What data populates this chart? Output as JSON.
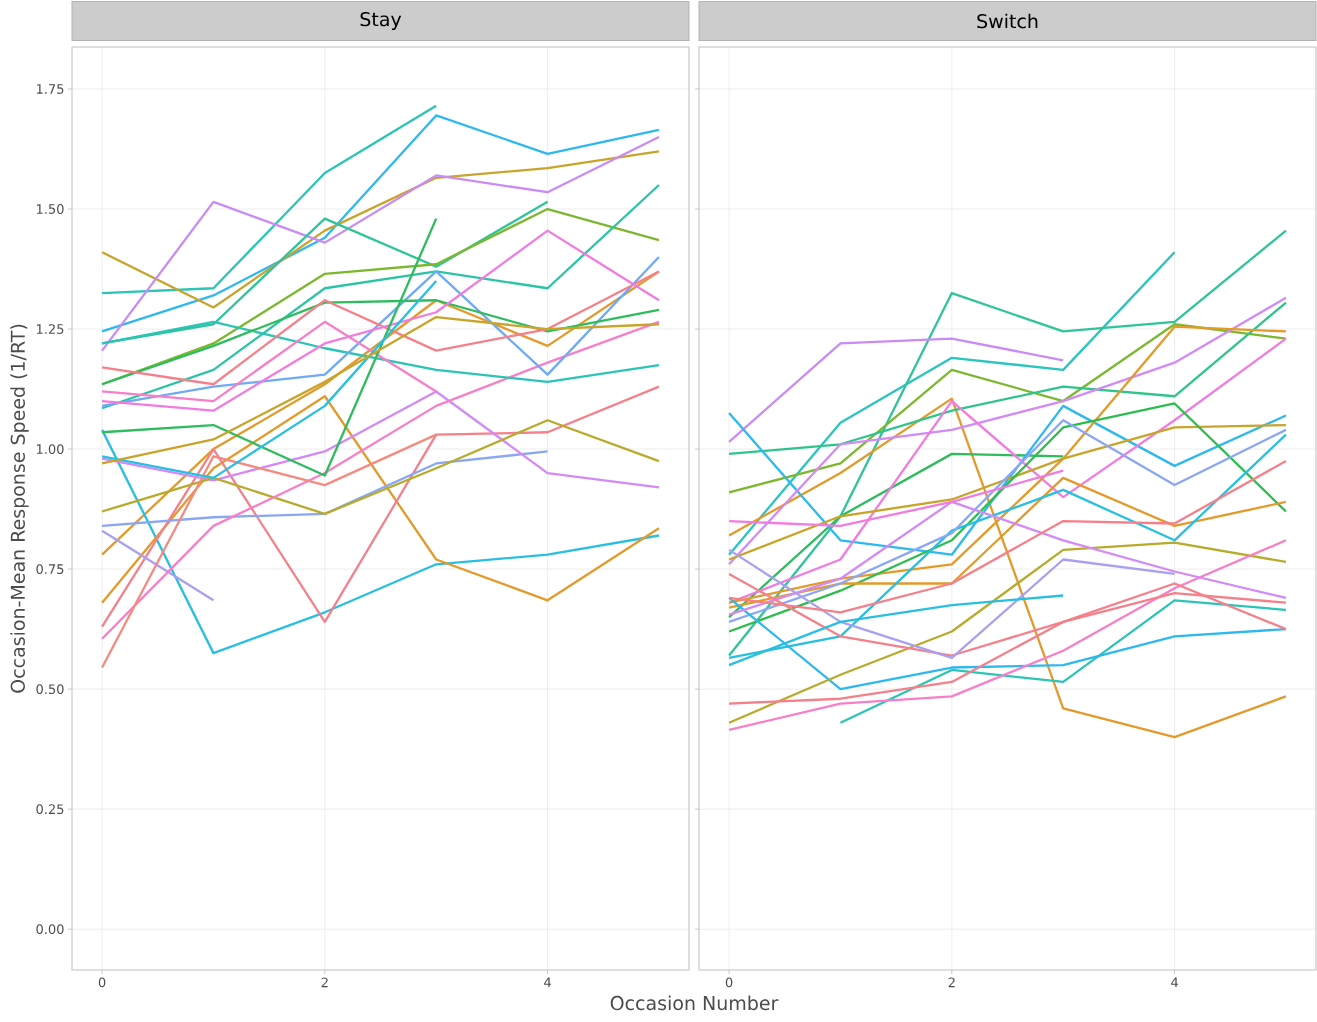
{
  "chart_data": [
    {
      "type": "line",
      "title": "Stay",
      "xlabel": "Occasion Number",
      "ylabel": "Occasion-Mean Response Speed (1/RT)",
      "x": [
        0,
        1,
        2,
        3,
        4,
        5
      ],
      "xlim": [
        -0.27,
        5.27
      ],
      "ylim": [
        -0.085,
        1.8375
      ],
      "xticks": [
        0,
        2,
        4
      ],
      "yticks": [
        {
          "value": 0,
          "label": "0.00"
        },
        {
          "value": 0.25,
          "label": "0.25"
        },
        {
          "value": 0.5,
          "label": "0.50"
        },
        {
          "value": 0.75,
          "label": "0.75"
        },
        {
          "value": 1,
          "label": "1.00"
        },
        {
          "value": 1.25,
          "label": "1.25"
        },
        {
          "value": 1.5,
          "label": "1.50"
        },
        {
          "value": 1.75,
          "label": "1.75"
        }
      ],
      "grid": true,
      "series": [
        {
          "color": "#2bc4b6",
          "values": [
            1.325,
            1.335,
            1.575,
            1.715,
            null,
            null
          ]
        },
        {
          "color": "#2eb8f0",
          "values": [
            1.245,
            1.32,
            1.44,
            1.695,
            1.615,
            1.665
          ]
        },
        {
          "color": "#c9a42a",
          "values": [
            1.41,
            1.295,
            1.455,
            1.565,
            1.585,
            1.62
          ]
        },
        {
          "color": "#c98bf5",
          "values": [
            1.205,
            1.515,
            1.43,
            1.57,
            1.535,
            1.65
          ]
        },
        {
          "color": "#2fc49a",
          "values": [
            1.22,
            1.26,
            1.48,
            1.38,
            1.515,
            null
          ]
        },
        {
          "color": "#7cb82f",
          "values": [
            1.135,
            1.22,
            1.365,
            1.385,
            1.5,
            1.435
          ]
        },
        {
          "color": "#2bc4a6",
          "values": [
            1.085,
            1.165,
            1.335,
            1.37,
            1.335,
            1.55
          ]
        },
        {
          "color": "#e39a2a",
          "values": [
            0.78,
            1.0,
            1.135,
            1.31,
            1.215,
            1.37
          ]
        },
        {
          "color": "#29bfe0",
          "values": [
            1.04,
            0.575,
            0.66,
            0.76,
            0.78,
            0.82
          ]
        },
        {
          "color": "#e39a2a",
          "values": [
            0.68,
            0.96,
            1.11,
            0.77,
            0.685,
            0.835
          ]
        },
        {
          "color": "#f5808a",
          "values": [
            0.63,
            1.0,
            0.64,
            1.03,
            1.035,
            1.13
          ]
        },
        {
          "color": "#a9a0f0",
          "values": [
            0.83,
            0.685,
            null,
            null,
            null,
            null
          ]
        },
        {
          "color": "#8aa6f5",
          "values": [
            0.84,
            0.858,
            0.865,
            0.97,
            0.995,
            null
          ]
        },
        {
          "color": "#d38af5",
          "values": [
            0.98,
            0.935,
            0.995,
            1.12,
            0.95,
            0.92
          ]
        },
        {
          "color": "#b8ab2c",
          "values": [
            0.87,
            0.94,
            0.865,
            0.96,
            1.06,
            0.975
          ]
        },
        {
          "color": "#f77fc8",
          "values": [
            0.605,
            0.84,
            0.95,
            1.09,
            1.18,
            1.265
          ]
        },
        {
          "color": "#2bc4b6",
          "values": [
            1.22,
            1.265,
            1.21,
            1.165,
            1.14,
            1.175
          ]
        },
        {
          "color": "#6eaaf5",
          "values": [
            1.09,
            1.13,
            1.155,
            1.37,
            1.155,
            1.4
          ]
        },
        {
          "color": "#2ebc5e",
          "values": [
            1.135,
            1.215,
            1.305,
            1.31,
            1.245,
            1.29
          ]
        },
        {
          "color": "#f77fc8",
          "values": [
            1.12,
            1.1,
            1.265,
            1.12,
            null,
            null
          ]
        },
        {
          "color": "#f5808a",
          "values": [
            1.17,
            1.135,
            1.31,
            1.205,
            1.25,
            1.37
          ]
        },
        {
          "color": "#f27be0",
          "values": [
            1.1,
            1.08,
            1.22,
            1.285,
            1.455,
            1.31
          ]
        },
        {
          "color": "#2ebc5e",
          "values": [
            1.035,
            1.05,
            0.945,
            1.48,
            null,
            null
          ]
        },
        {
          "color": "#f58a80",
          "values": [
            0.545,
            0.985,
            0.925,
            1.03,
            null,
            null
          ]
        },
        {
          "color": "#29bfe0",
          "values": [
            0.985,
            0.94,
            1.09,
            1.35,
            null,
            null
          ]
        },
        {
          "color": "#c9a42a",
          "values": [
            0.97,
            1.02,
            1.14,
            1.275,
            1.25,
            1.26
          ]
        }
      ]
    },
    {
      "type": "line",
      "title": "Switch",
      "x": [
        0,
        1,
        2,
        3,
        4,
        5
      ],
      "xlim": [
        -0.27,
        5.27
      ],
      "ylim": [
        -0.085,
        1.8375
      ],
      "xticks": [
        0,
        2,
        4
      ],
      "yticks": [
        {
          "value": 0,
          "label": null
        },
        {
          "value": 0.25,
          "label": null
        },
        {
          "value": 0.5,
          "label": null
        },
        {
          "value": 0.75,
          "label": null
        },
        {
          "value": 1,
          "label": null
        },
        {
          "value": 1.25,
          "label": null
        },
        {
          "value": 1.5,
          "label": null
        },
        {
          "value": 1.75,
          "label": null
        }
      ],
      "grid": true,
      "tick_labels": "x",
      "series": [
        {
          "color": "#2bc4c0",
          "values": [
            0.78,
            1.055,
            1.19,
            1.165,
            1.41,
            null
          ]
        },
        {
          "color": "#2fc49a",
          "values": [
            0.57,
            0.86,
            1.325,
            1.245,
            1.265,
            1.455
          ]
        },
        {
          "color": "#c98bf5",
          "values": [
            1.015,
            1.22,
            1.23,
            1.185,
            null,
            null
          ]
        },
        {
          "color": "#7cb82f",
          "values": [
            0.91,
            0.97,
            1.165,
            1.1,
            1.26,
            1.23
          ]
        },
        {
          "color": "#e39a2a",
          "values": [
            0.82,
            0.95,
            1.105,
            0.46,
            0.4,
            0.485
          ]
        },
        {
          "color": "#2fc48a",
          "values": [
            0.99,
            1.01,
            1.08,
            1.13,
            1.11,
            1.305
          ]
        },
        {
          "color": "#2ebc5e",
          "values": [
            0.65,
            0.86,
            0.99,
            0.985,
            null,
            null
          ]
        },
        {
          "color": "#2eb8f0",
          "values": [
            1.075,
            0.81,
            0.78,
            1.09,
            0.965,
            1.07
          ]
        },
        {
          "color": "#d38af5",
          "values": [
            0.76,
            1.01,
            1.04,
            1.1,
            1.18,
            1.315
          ]
        },
        {
          "color": "#f27be0",
          "values": [
            0.68,
            0.77,
            1.1,
            0.9,
            1.06,
            1.23
          ]
        },
        {
          "color": "#e39a2a",
          "values": [
            0.68,
            0.73,
            0.76,
            0.98,
            1.255,
            1.245
          ]
        },
        {
          "color": "#c9a42a",
          "values": [
            0.77,
            0.86,
            0.895,
            0.98,
            1.045,
            1.05
          ]
        },
        {
          "color": "#2ebc4e",
          "values": [
            0.62,
            0.705,
            0.81,
            1.045,
            1.095,
            0.87
          ]
        },
        {
          "color": "#e39a2a",
          "values": [
            0.67,
            0.72,
            0.72,
            0.94,
            0.84,
            0.89
          ]
        },
        {
          "color": "#29bfe0",
          "values": [
            0.565,
            0.61,
            0.83,
            0.915,
            0.81,
            1.03
          ]
        },
        {
          "color": "#8aa6f5",
          "values": [
            0.64,
            0.72,
            0.825,
            1.06,
            0.925,
            1.04
          ]
        },
        {
          "color": "#2bc4b6",
          "values": [
            null,
            0.43,
            0.54,
            0.515,
            0.685,
            0.665
          ]
        },
        {
          "color": "#2eb8f0",
          "values": [
            0.69,
            0.5,
            0.545,
            0.55,
            0.61,
            0.625
          ]
        },
        {
          "color": "#b8ab2c",
          "values": [
            0.43,
            0.53,
            0.62,
            0.79,
            0.805,
            0.765
          ]
        },
        {
          "color": "#f77fc8",
          "values": [
            0.415,
            0.47,
            0.485,
            0.58,
            0.71,
            0.81
          ]
        },
        {
          "color": "#f5808a",
          "values": [
            0.47,
            0.48,
            0.515,
            0.64,
            0.72,
            0.625
          ]
        },
        {
          "color": "#d38af5",
          "values": [
            0.655,
            0.73,
            0.89,
            0.81,
            0.745,
            0.69
          ]
        },
        {
          "color": "#f5808a",
          "values": [
            0.74,
            0.61,
            0.57,
            0.64,
            0.7,
            0.68
          ]
        },
        {
          "color": "#a9a0f0",
          "values": [
            0.79,
            0.64,
            0.565,
            0.77,
            0.74,
            null
          ]
        },
        {
          "color": "#f5808a",
          "values": [
            0.69,
            0.66,
            0.72,
            0.85,
            0.845,
            0.975
          ]
        },
        {
          "color": "#29bfe0",
          "values": [
            0.55,
            0.64,
            0.675,
            0.695,
            null,
            null
          ]
        },
        {
          "color": "#f27be0",
          "values": [
            0.85,
            0.84,
            0.89,
            0.955,
            null,
            null
          ]
        }
      ]
    }
  ]
}
